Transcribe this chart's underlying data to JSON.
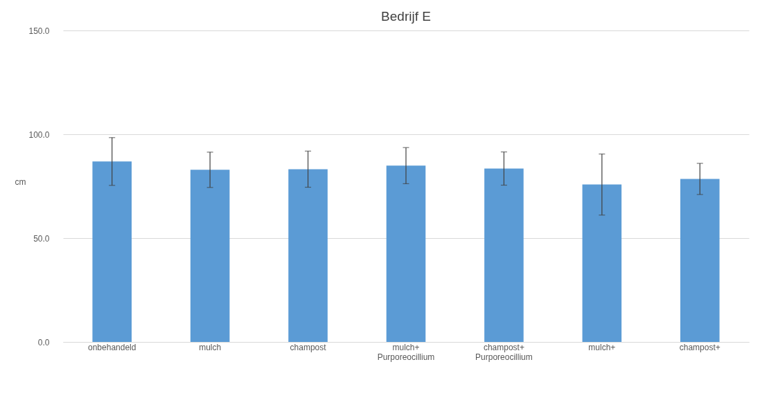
{
  "chart_data": {
    "type": "bar",
    "title": "Bedrijf E",
    "ylabel": "cm",
    "categories": [
      "onbehandeld",
      "mulch",
      "champost",
      "mulch+ Purporeocillium",
      "champost+ Purporeocillium",
      "mulch+",
      "champost+"
    ],
    "values": [
      86.9,
      82.9,
      83.2,
      84.9,
      83.5,
      75.8,
      78.5
    ],
    "errors": [
      11.5,
      8.5,
      8.7,
      8.7,
      8.0,
      14.7,
      7.5
    ],
    "color": "#5b9bd5",
    "ylim": [
      0,
      150
    ],
    "yticks": [
      {
        "value": 0,
        "label": "0.0"
      },
      {
        "value": 50,
        "label": "50.0"
      },
      {
        "value": 100,
        "label": "100.0"
      },
      {
        "value": 150,
        "label": "150.0"
      }
    ],
    "grid": "y"
  }
}
